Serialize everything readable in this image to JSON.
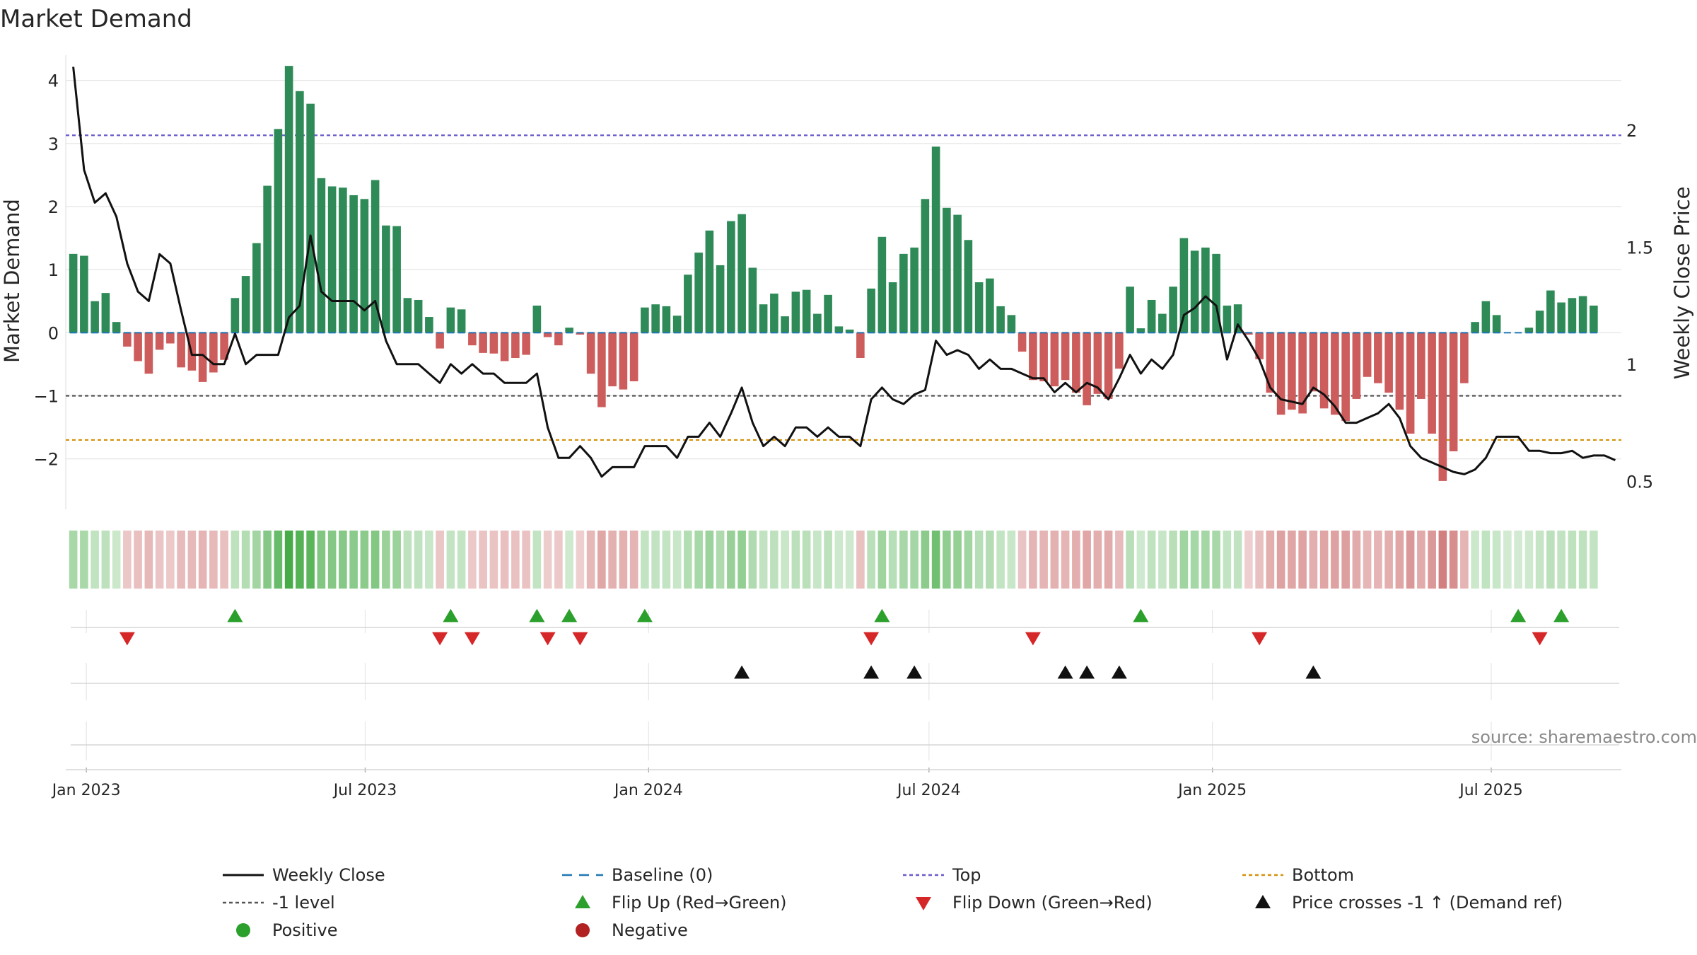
{
  "chart_data": {
    "type": "bar",
    "title": "Market Demand",
    "ylabel": "Market Demand",
    "ylabel_right": "Weekly Close Price",
    "ylim": [
      -2.8,
      4.4
    ],
    "ylim_right": [
      0.38,
      2.32
    ],
    "yticks": [
      -2,
      -1,
      0,
      1,
      2,
      3,
      4
    ],
    "yticks_right": [
      0.5,
      1,
      1.5,
      2
    ],
    "yticks_right_labels": [
      "0.5",
      "1",
      "1.5",
      "2"
    ],
    "top_level": 3.13,
    "bottom_level": -1.7,
    "minus_one_level": -1,
    "grid": true,
    "x_start": "2022-12-20",
    "x_ticks": [
      {
        "date": "2023-01-01",
        "label": "Jan 2023"
      },
      {
        "date": "2023-07-01",
        "label": "Jul 2023"
      },
      {
        "date": "2024-01-01",
        "label": "Jan 2024"
      },
      {
        "date": "2024-07-01",
        "label": "Jul 2024"
      },
      {
        "date": "2025-01-01",
        "label": "Jan 2025"
      },
      {
        "date": "2025-07-01",
        "label": "Jul 2025"
      }
    ],
    "demand": [
      1.25,
      1.22,
      0.5,
      0.63,
      0.17,
      -0.22,
      -0.45,
      -0.65,
      -0.27,
      -0.17,
      -0.55,
      -0.6,
      -0.78,
      -0.63,
      -0.43,
      0.55,
      0.9,
      1.42,
      2.33,
      3.23,
      4.23,
      3.83,
      3.63,
      2.45,
      2.32,
      2.3,
      2.18,
      2.12,
      2.42,
      1.7,
      1.69,
      0.55,
      0.52,
      0.25,
      -0.25,
      0.4,
      0.37,
      -0.2,
      -0.32,
      -0.33,
      -0.45,
      -0.4,
      -0.35,
      0.43,
      -0.07,
      -0.2,
      0.08,
      -0.03,
      -0.65,
      -1.18,
      -0.85,
      -0.9,
      -0.77,
      0.4,
      0.45,
      0.42,
      0.27,
      0.92,
      1.27,
      1.62,
      1.07,
      1.77,
      1.88,
      1.03,
      0.45,
      0.62,
      0.26,
      0.65,
      0.68,
      0.3,
      0.6,
      0.1,
      0.05,
      -0.4,
      0.7,
      1.52,
      0.8,
      1.25,
      1.35,
      2.12,
      2.95,
      1.98,
      1.87,
      1.47,
      0.8,
      0.86,
      0.42,
      0.28,
      -0.3,
      -0.75,
      -0.77,
      -0.85,
      -0.75,
      -0.95,
      -1.15,
      -0.97,
      -1.05,
      -0.57,
      0.73,
      0.07,
      0.52,
      0.3,
      0.73,
      1.5,
      1.3,
      1.35,
      1.25,
      0.43,
      0.45,
      -0.03,
      -0.42,
      -0.95,
      -1.3,
      -1.22,
      -1.28,
      -0.93,
      -1.2,
      -1.3,
      -1.4,
      -1.05,
      -0.7,
      -0.8,
      -0.95,
      -1.22,
      -1.6,
      -1.05,
      -1.6,
      -2.35,
      -1.88,
      -0.8,
      0.17,
      0.5,
      0.28,
      0.0,
      0.0,
      0.08,
      0.35,
      0.67,
      0.48,
      0.55,
      0.58,
      0.43
    ],
    "close": [
      2.27,
      1.83,
      1.69,
      1.73,
      1.63,
      1.43,
      1.31,
      1.27,
      1.47,
      1.43,
      1.23,
      1.04,
      1.04,
      1.0,
      1.0,
      1.13,
      1.0,
      1.04,
      1.04,
      1.04,
      1.2,
      1.25,
      1.55,
      1.31,
      1.27,
      1.27,
      1.27,
      1.23,
      1.27,
      1.1,
      1.0,
      1.0,
      1.0,
      0.96,
      0.92,
      1.0,
      0.96,
      1.0,
      0.96,
      0.96,
      0.92,
      0.92,
      0.92,
      0.96,
      0.73,
      0.6,
      0.6,
      0.65,
      0.6,
      0.52,
      0.56,
      0.56,
      0.56,
      0.65,
      0.65,
      0.65,
      0.6,
      0.69,
      0.69,
      0.75,
      0.69,
      0.79,
      0.9,
      0.75,
      0.65,
      0.69,
      0.65,
      0.73,
      0.73,
      0.69,
      0.73,
      0.69,
      0.69,
      0.65,
      0.85,
      0.9,
      0.85,
      0.83,
      0.87,
      0.89,
      1.1,
      1.04,
      1.06,
      1.04,
      0.98,
      1.02,
      0.98,
      0.98,
      0.96,
      0.94,
      0.94,
      0.88,
      0.92,
      0.88,
      0.92,
      0.9,
      0.85,
      0.94,
      1.04,
      0.96,
      1.02,
      0.98,
      1.04,
      1.21,
      1.24,
      1.29,
      1.25,
      1.02,
      1.17,
      1.1,
      1.02,
      0.9,
      0.85,
      0.84,
      0.83,
      0.9,
      0.87,
      0.82,
      0.75,
      0.75,
      0.77,
      0.79,
      0.83,
      0.77,
      0.65,
      0.6,
      0.58,
      0.56,
      0.54,
      0.53,
      0.55,
      0.6,
      0.69,
      0.69,
      0.69,
      0.63,
      0.63,
      0.62,
      0.62,
      0.63,
      0.6,
      0.61,
      0.61,
      0.59
    ],
    "flip_up_idx": [
      15,
      35,
      43,
      46,
      53,
      75,
      99,
      134,
      138
    ],
    "flip_down_idx": [
      5,
      34,
      37,
      44,
      47,
      74,
      89,
      110,
      136
    ],
    "price_cross_idx": [
      62,
      74,
      78,
      92,
      94,
      97,
      115
    ],
    "source": "source: sharemaestro.com",
    "legend": [
      {
        "key": "weekly-close",
        "label": "Weekly Close",
        "color": "#111111"
      },
      {
        "key": "baseline",
        "label": "Baseline (0)",
        "color": "#1f77b4"
      },
      {
        "key": "top",
        "label": "Top",
        "color": "#6a5acd"
      },
      {
        "key": "bottom",
        "label": "Bottom",
        "color": "#d4910a"
      },
      {
        "key": "minus-one",
        "label": "-1 level",
        "color": "#555555"
      },
      {
        "key": "flip-up",
        "label": "Flip Up (Red→Green)",
        "color": "#2ca02c"
      },
      {
        "key": "flip-down",
        "label": "Flip Down (Green→Red)",
        "color": "#d62728"
      },
      {
        "key": "price-cross",
        "label": "Price crosses -1 ↑ (Demand ref)",
        "color": "#111111"
      },
      {
        "key": "positive",
        "label": "Positive",
        "color": "#2ca02c"
      },
      {
        "key": "negative",
        "label": "Negative",
        "color": "#b22222"
      }
    ],
    "colors": {
      "pos": "#2e8b57",
      "neg": "#cd5c5c",
      "heat_pos": "#2ca02c",
      "heat_neg": "#b22222",
      "top": "#6a5acd",
      "bottom": "#d4910a",
      "minus_one": "#555555",
      "baseline": "#1f77b4",
      "flip_up": "#2ca02c",
      "flip_down": "#d62728"
    }
  }
}
